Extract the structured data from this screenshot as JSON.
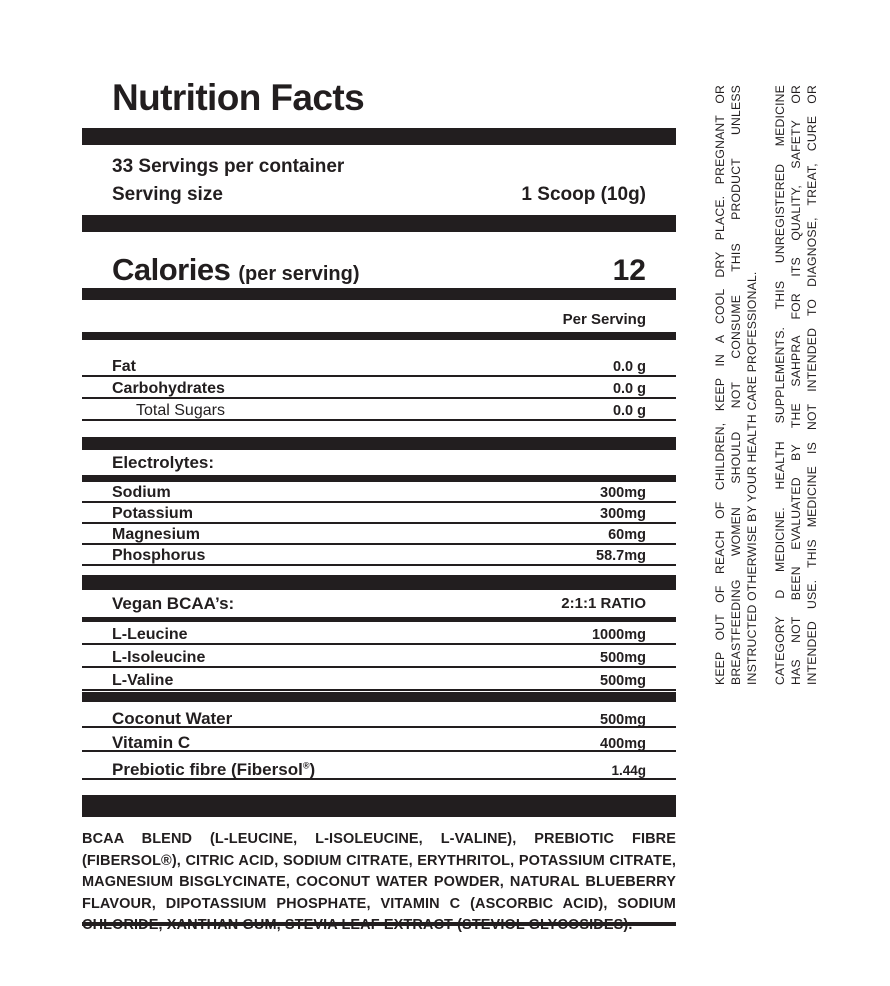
{
  "colors": {
    "ink": "#221e1f",
    "paper": "#ffffff"
  },
  "header": {
    "title": "Nutrition Facts",
    "servings_per_container": "33 Servings per container",
    "serving_size_label": "Serving size",
    "serving_size_value": "1 Scoop (10g)"
  },
  "calories": {
    "label": "Calories",
    "qualifier": "(per serving)",
    "value": "12"
  },
  "column_header": "Per Serving",
  "table": {
    "groups": [
      {
        "id": "macros",
        "rows": [
          {
            "label": "Fat",
            "value": "0.0 g"
          },
          {
            "label": "Carbohydrates",
            "value": "0.0 g"
          },
          {
            "label": "Total Sugars",
            "value": "0.0 g",
            "variant": "sub"
          }
        ]
      },
      {
        "id": "electrolytes",
        "header": {
          "label": "Electrolytes:",
          "value": ""
        },
        "rows": [
          {
            "label": "Sodium",
            "value": "300mg"
          },
          {
            "label": "Potassium",
            "value": "300mg"
          },
          {
            "label": "Magnesium",
            "value": "60mg"
          },
          {
            "label": "Phosphorus",
            "value": "58.7mg"
          }
        ]
      },
      {
        "id": "bcaa",
        "header": {
          "label": "Vegan BCAA’s:",
          "value": "2:1:1 RATIO"
        },
        "rows": [
          {
            "label": "L-Leucine",
            "value": "1000mg"
          },
          {
            "label": "L-Isoleucine",
            "value": "500mg"
          },
          {
            "label": "L-Valine",
            "value": "500mg"
          }
        ]
      },
      {
        "id": "actives",
        "rows": [
          {
            "label": "Coconut Water",
            "value": "500mg"
          },
          {
            "label": "Vitamin C",
            "value": "400mg"
          },
          {
            "label": "Prebiotic fibre (Fibersol",
            "sup": "®",
            "suffix": ")",
            "value": "1.44g"
          }
        ]
      }
    ]
  },
  "ingredients": "BCAA BLEND (L-LEUCINE, L-ISOLEUCINE, L-VALINE), PREBIOTIC FIBRE (FIBERSOL®), CITRIC ACID, SODIUM CITRATE, ERYTHRITOL, POTASSIUM CITRATE, MAGNESIUM BISGLYCINATE, COCONUT WATER POWDER, NATURAL BLUEBERRY FLAVOUR, DIPOTASSIUM PHOSPHATE, VITAMIN C (ASCORBIC ACID), SODIUM CHLORIDE, XANTHAN GUM, STEVIA LEAF EXTRACT (STEVIOL GLYCOSIDES).",
  "side_warnings": {
    "storage": {
      "lines": [
        "KEEP OUT OF REACH OF CHILDREN, KEEP IN A COOL DRY PLACE. PREGNANT OR",
        "BREASTFEEDING WOMEN SHOULD NOT CONSUME THIS PRODUCT UNLESS",
        "INSTRUCTED OTHERWISE BY YOUR HEALTH CARE PROFESSIONAL."
      ]
    },
    "regulatory": {
      "lines": [
        "CATEGORY D MEDICINE. HEALTH SUPPLEMENTS. THIS UNREGISTERED MEDICINE",
        "HAS NOT BEEN EVALUATED BY THE SAHPRA FOR ITS QUALITY, SAFETY OR",
        "INTENDED USE. THIS MEDICINE IS NOT INTENDED TO DIAGNOSE, TREAT, CURE OR"
      ]
    }
  }
}
